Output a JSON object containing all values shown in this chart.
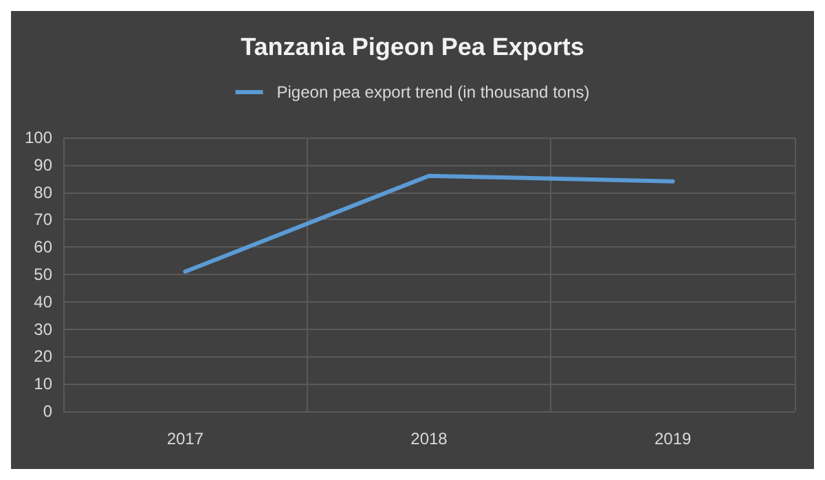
{
  "chart_data": {
    "type": "line",
    "title": "Tanzania Pigeon Pea Exports",
    "categories": [
      "2017",
      "2018",
      "2019"
    ],
    "series": [
      {
        "name": "Pigeon pea export trend (in thousand tons)",
        "color": "#5b9bd5",
        "values": [
          51,
          86,
          84
        ]
      }
    ],
    "ylim": [
      0,
      100
    ],
    "yticks": [
      0,
      10,
      20,
      30,
      40,
      50,
      60,
      70,
      80,
      90,
      100
    ],
    "grid": true,
    "legend": "top",
    "marker": "none",
    "line_style": "solid"
  }
}
